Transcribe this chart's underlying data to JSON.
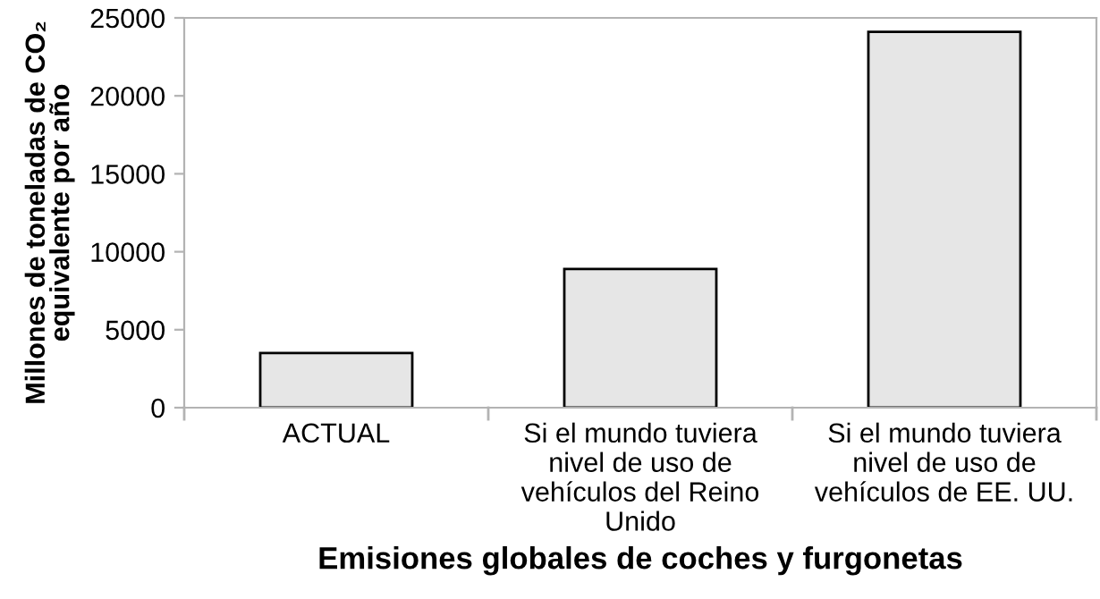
{
  "chart_data": {
    "type": "bar",
    "xlabel": "Emisiones globales de coches y furgonetas",
    "ylabel": "Millones de toneladas de CO₂\nequivalente por año",
    "categories": [
      "ACTUAL",
      "Si el mundo tuviera\nnivel de uso de\nvehículos del Reino\nUnido",
      "Si el mundo tuviera\nnivel de uso de\nvehículos de EE. UU."
    ],
    "values": [
      3500,
      8900,
      24100
    ],
    "color": "#e6e6e6",
    "ylim": [
      0,
      25000
    ],
    "yticks": [
      0,
      5000,
      10000,
      15000,
      20000,
      25000
    ],
    "grid": false,
    "legend": false
  }
}
